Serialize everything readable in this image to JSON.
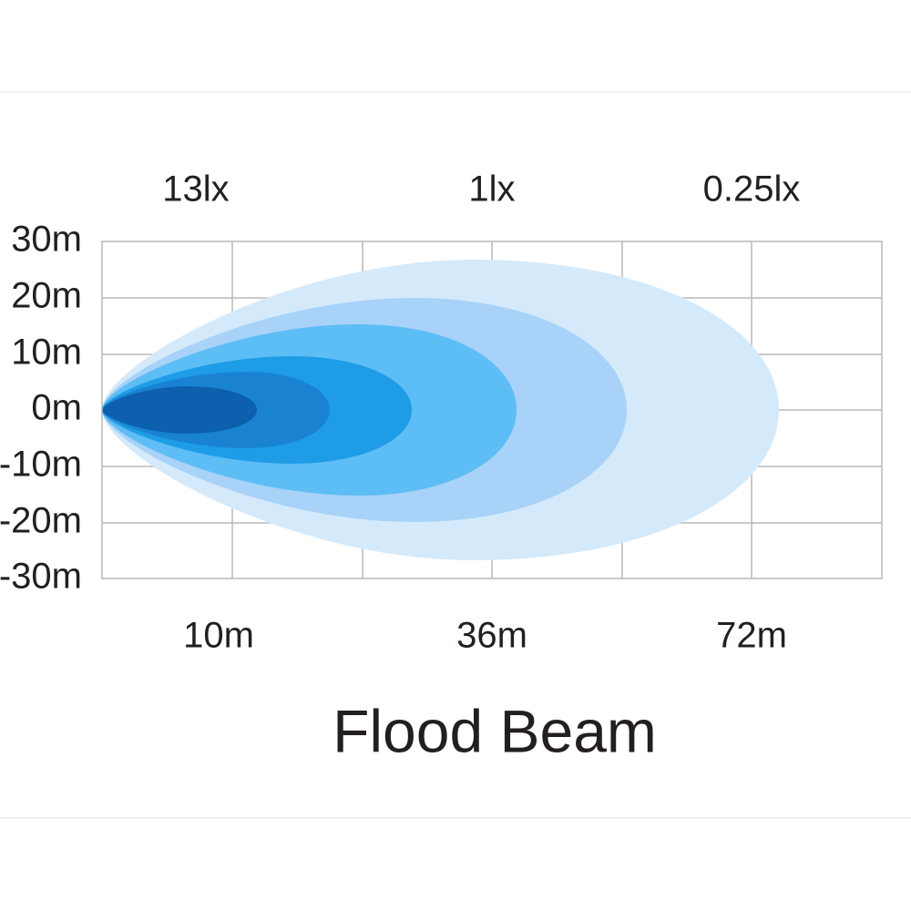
{
  "lux_labels": [
    "13lx",
    "1lx",
    "0.25lx"
  ],
  "y_labels": [
    "30m",
    "20m",
    "10m",
    "0m",
    "-10m",
    "-20m",
    "-30m"
  ],
  "x_labels": [
    "10m",
    "36m",
    "72m"
  ],
  "title": "Flood Beam"
}
